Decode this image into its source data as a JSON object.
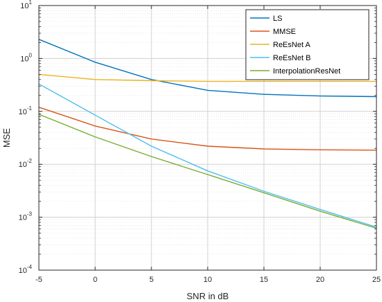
{
  "chart_data": {
    "type": "line",
    "title": "",
    "xlabel": "SNR in dB",
    "ylabel": "MSE",
    "xlim": [
      -5,
      25
    ],
    "ylim": [
      0.0001,
      10
    ],
    "yscale": "log",
    "grid": true,
    "minor_grid": true,
    "legend_position": "top-right",
    "x_ticks": [
      {
        "value": -5,
        "label": "-5"
      },
      {
        "value": 0,
        "label": "0"
      },
      {
        "value": 5,
        "label": "5"
      },
      {
        "value": 10,
        "label": "10"
      },
      {
        "value": 15,
        "label": "15"
      },
      {
        "value": 20,
        "label": "20"
      },
      {
        "value": 25,
        "label": "25"
      }
    ],
    "y_ticks": [
      {
        "value": 0.0001,
        "base": "10",
        "exp": "-4"
      },
      {
        "value": 0.001,
        "base": "10",
        "exp": "-3"
      },
      {
        "value": 0.01,
        "base": "10",
        "exp": "-2"
      },
      {
        "value": 0.1,
        "base": "10",
        "exp": "-1"
      },
      {
        "value": 1,
        "base": "10",
        "exp": "0"
      },
      {
        "value": 10,
        "base": "10",
        "exp": "1"
      }
    ],
    "series": [
      {
        "name": "LS",
        "color": "#0072BD",
        "x": [
          -5,
          0,
          5,
          10,
          15,
          20,
          25
        ],
        "y": [
          2.3,
          0.85,
          0.4,
          0.25,
          0.21,
          0.195,
          0.19
        ]
      },
      {
        "name": "MMSE",
        "color": "#D95319",
        "x": [
          -5,
          0,
          5,
          10,
          15,
          20,
          25
        ],
        "y": [
          0.12,
          0.053,
          0.03,
          0.022,
          0.0195,
          0.0188,
          0.0185
        ]
      },
      {
        "name": "ReEsNet A",
        "color": "#EDB120",
        "x": [
          -5,
          0,
          5,
          10,
          15,
          20,
          25
        ],
        "y": [
          0.5,
          0.4,
          0.38,
          0.37,
          0.37,
          0.37,
          0.37
        ]
      },
      {
        "name": "ReEsNet B",
        "color": "#4DBEEE",
        "x": [
          -5,
          0,
          5,
          10,
          15,
          20,
          25
        ],
        "y": [
          0.33,
          0.085,
          0.022,
          0.0075,
          0.0031,
          0.0014,
          0.00065
        ]
      },
      {
        "name": "InterpolationResNet",
        "color": "#77AC30",
        "x": [
          -5,
          0,
          5,
          10,
          15,
          20,
          25
        ],
        "y": [
          0.088,
          0.033,
          0.014,
          0.0064,
          0.0029,
          0.0013,
          0.00062
        ]
      }
    ]
  }
}
